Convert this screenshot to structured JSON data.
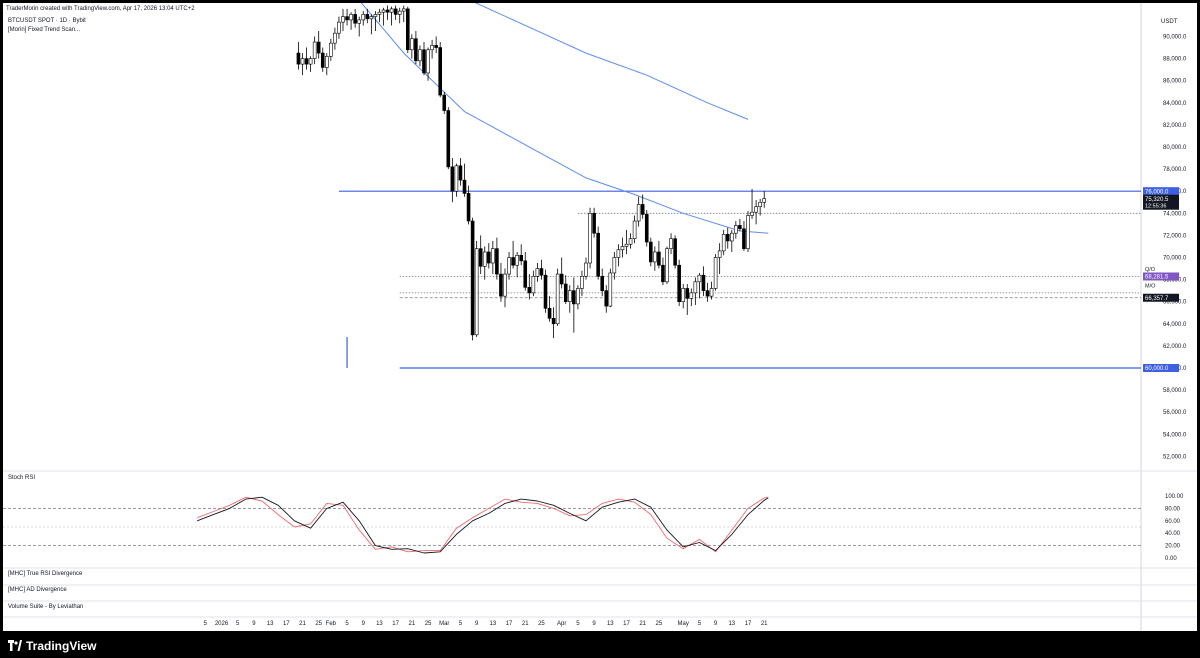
{
  "header": {
    "credit": "TraderMorin created with TradingView.com, Apr 17, 2026 13:04 UTC+2",
    "symbol_line": "BTCUSDT SPOT · 1D · Bybit",
    "indicator_line": "[Morin] Fixed Trend Scan...",
    "currency": "USDT"
  },
  "brand": {
    "name": "TradingView"
  },
  "colors": {
    "up": "#ffffff",
    "down": "#000000",
    "ma": "#5b8def",
    "level_line": "#3d5fe0",
    "level_tag": "#3d5fe0",
    "purple_tag": "#7e57c2",
    "black_tag": "#131722",
    "stoch_k": "#131722",
    "stoch_d": "#f06a6a"
  },
  "indicators": {
    "stoch_title": "Stoch RSI",
    "panes": [
      "[MHC] True RSI Divergence",
      "[MHC] AD Divergence",
      "Volume Suite - By Leviathan"
    ]
  },
  "chart_data": {
    "type": "candlestick",
    "price_axis": {
      "ylim": [
        50000,
        92000
      ],
      "ticks": [
        52000,
        54000,
        56000,
        58000,
        60000,
        62000,
        64000,
        66000,
        68000,
        70000,
        72000,
        74000,
        76000,
        78000,
        80000,
        82000,
        84000,
        86000,
        88000,
        90000
      ],
      "tick_labels": [
        "52,000.0",
        "54,000.0",
        "56,000.0",
        "58,000.0",
        "60,000.0",
        "62,000.0",
        "64,000.0",
        "66,000.0",
        "68,000.0",
        "70,000.0",
        "72,000.0",
        "74,000.0",
        "76,000.0",
        "78,000.0",
        "80,000.0",
        "82,000.0",
        "84,000.0",
        "86,000.0",
        "88,000.0",
        "90,000.0"
      ]
    },
    "time_axis": {
      "labels": [
        "5",
        "2026",
        "5",
        "9",
        "13",
        "17",
        "21",
        "25",
        "Feb",
        "5",
        "9",
        "13",
        "17",
        "21",
        "25",
        "Mar",
        "5",
        "9",
        "13",
        "17",
        "21",
        "25",
        "Apr",
        "5",
        "9",
        "13",
        "17",
        "21",
        "25",
        "May",
        "5",
        "9",
        "13",
        "17",
        "21"
      ],
      "label_index": [
        -34,
        -30,
        -26,
        -22,
        -18,
        -14,
        -10,
        -6,
        -3,
        1,
        5,
        9,
        13,
        17,
        21,
        25,
        29,
        33,
        37,
        41,
        45,
        49,
        54,
        58,
        62,
        66,
        70,
        74,
        78,
        84,
        88,
        92,
        96,
        100,
        104
      ]
    },
    "candles": [
      {
        "o": 88500,
        "h": 89500,
        "l": 87000,
        "c": 87500
      },
      {
        "o": 87500,
        "h": 88500,
        "l": 86500,
        "c": 88000
      },
      {
        "o": 88000,
        "h": 89000,
        "l": 87000,
        "c": 87500
      },
      {
        "o": 87500,
        "h": 88200,
        "l": 86800,
        "c": 88000
      },
      {
        "o": 88000,
        "h": 90000,
        "l": 87500,
        "c": 89500
      },
      {
        "o": 89500,
        "h": 90500,
        "l": 88000,
        "c": 88500
      },
      {
        "o": 88500,
        "h": 89000,
        "l": 86800,
        "c": 87200
      },
      {
        "o": 87200,
        "h": 88500,
        "l": 86500,
        "c": 88200
      },
      {
        "o": 88200,
        "h": 89800,
        "l": 87800,
        "c": 89400
      },
      {
        "o": 89400,
        "h": 90800,
        "l": 88800,
        "c": 90300
      },
      {
        "o": 90300,
        "h": 91800,
        "l": 89800,
        "c": 91300
      },
      {
        "o": 91300,
        "h": 92500,
        "l": 90500,
        "c": 91800
      },
      {
        "o": 91800,
        "h": 92500,
        "l": 91000,
        "c": 91500
      },
      {
        "o": 91500,
        "h": 92200,
        "l": 90600,
        "c": 92000
      },
      {
        "o": 92000,
        "h": 92500,
        "l": 90800,
        "c": 91200
      },
      {
        "o": 91200,
        "h": 91800,
        "l": 90000,
        "c": 91500
      },
      {
        "o": 91500,
        "h": 92300,
        "l": 91000,
        "c": 92000
      },
      {
        "o": 92000,
        "h": 92500,
        "l": 91200,
        "c": 91600
      },
      {
        "o": 91600,
        "h": 92000,
        "l": 90200,
        "c": 91800
      },
      {
        "o": 91800,
        "h": 92300,
        "l": 90500,
        "c": 92000
      },
      {
        "o": 92000,
        "h": 92500,
        "l": 91300,
        "c": 92200
      },
      {
        "o": 92200,
        "h": 92600,
        "l": 91000,
        "c": 92400
      },
      {
        "o": 92400,
        "h": 92800,
        "l": 91500,
        "c": 92200
      },
      {
        "o": 92200,
        "h": 92700,
        "l": 91000,
        "c": 92500
      },
      {
        "o": 92500,
        "h": 92800,
        "l": 91500,
        "c": 92000
      },
      {
        "o": 92000,
        "h": 92600,
        "l": 91200,
        "c": 92300
      },
      {
        "o": 92300,
        "h": 92800,
        "l": 91300,
        "c": 92500
      },
      {
        "o": 92500,
        "h": 92700,
        "l": 88500,
        "c": 88800
      },
      {
        "o": 88800,
        "h": 90200,
        "l": 88000,
        "c": 89800
      },
      {
        "o": 89800,
        "h": 90500,
        "l": 87500,
        "c": 87800
      },
      {
        "o": 87800,
        "h": 89200,
        "l": 87300,
        "c": 88800
      },
      {
        "o": 88800,
        "h": 89500,
        "l": 86500,
        "c": 86700
      },
      {
        "o": 86700,
        "h": 89000,
        "l": 86000,
        "c": 88800
      },
      {
        "o": 88800,
        "h": 89700,
        "l": 88000,
        "c": 89200
      },
      {
        "o": 89200,
        "h": 90000,
        "l": 88500,
        "c": 89000
      },
      {
        "o": 89000,
        "h": 89500,
        "l": 84500,
        "c": 84700
      },
      {
        "o": 84700,
        "h": 85000,
        "l": 83000,
        "c": 83300
      },
      {
        "o": 83300,
        "h": 83600,
        "l": 78000,
        "c": 78200
      },
      {
        "o": 78200,
        "h": 79000,
        "l": 75000,
        "c": 76000
      },
      {
        "o": 76000,
        "h": 78500,
        "l": 75500,
        "c": 78300
      },
      {
        "o": 78300,
        "h": 79000,
        "l": 76500,
        "c": 77000
      },
      {
        "o": 77000,
        "h": 78500,
        "l": 75500,
        "c": 75800
      },
      {
        "o": 75800,
        "h": 76500,
        "l": 73000,
        "c": 73300
      },
      {
        "o": 73300,
        "h": 73600,
        "l": 62500,
        "c": 63000
      },
      {
        "o": 63000,
        "h": 71500,
        "l": 62800,
        "c": 70800
      },
      {
        "o": 70800,
        "h": 72000,
        "l": 68500,
        "c": 69200
      },
      {
        "o": 69200,
        "h": 71000,
        "l": 68000,
        "c": 70500
      },
      {
        "o": 70500,
        "h": 71300,
        "l": 69000,
        "c": 69500
      },
      {
        "o": 69500,
        "h": 71500,
        "l": 68500,
        "c": 70800
      },
      {
        "o": 70800,
        "h": 71800,
        "l": 68000,
        "c": 68500
      },
      {
        "o": 68500,
        "h": 69500,
        "l": 66000,
        "c": 66500
      },
      {
        "o": 66500,
        "h": 69000,
        "l": 65500,
        "c": 68500
      },
      {
        "o": 68500,
        "h": 70500,
        "l": 68000,
        "c": 70000
      },
      {
        "o": 70000,
        "h": 71500,
        "l": 69000,
        "c": 69300
      },
      {
        "o": 69300,
        "h": 70500,
        "l": 68200,
        "c": 70200
      },
      {
        "o": 70200,
        "h": 71200,
        "l": 69300,
        "c": 69700
      },
      {
        "o": 69700,
        "h": 70500,
        "l": 67000,
        "c": 67300
      },
      {
        "o": 67300,
        "h": 68500,
        "l": 66200,
        "c": 66800
      },
      {
        "o": 66800,
        "h": 68800,
        "l": 66500,
        "c": 68300
      },
      {
        "o": 68300,
        "h": 69500,
        "l": 67800,
        "c": 69000
      },
      {
        "o": 69000,
        "h": 69800,
        "l": 68000,
        "c": 68400
      },
      {
        "o": 68400,
        "h": 68900,
        "l": 65000,
        "c": 65400
      },
      {
        "o": 65400,
        "h": 66500,
        "l": 64200,
        "c": 64500
      },
      {
        "o": 64500,
        "h": 65500,
        "l": 62700,
        "c": 64000
      },
      {
        "o": 64000,
        "h": 69000,
        "l": 63800,
        "c": 68500
      },
      {
        "o": 68500,
        "h": 70000,
        "l": 67200,
        "c": 67600
      },
      {
        "o": 67600,
        "h": 68400,
        "l": 65800,
        "c": 66000
      },
      {
        "o": 66000,
        "h": 67500,
        "l": 65000,
        "c": 67000
      },
      {
        "o": 67000,
        "h": 68200,
        "l": 63200,
        "c": 65800
      },
      {
        "o": 65800,
        "h": 67500,
        "l": 65300,
        "c": 67200
      },
      {
        "o": 67200,
        "h": 68800,
        "l": 66500,
        "c": 68300
      },
      {
        "o": 68300,
        "h": 70000,
        "l": 68000,
        "c": 69500
      },
      {
        "o": 69500,
        "h": 74500,
        "l": 69000,
        "c": 74000
      },
      {
        "o": 74000,
        "h": 74500,
        "l": 71800,
        "c": 72200
      },
      {
        "o": 72200,
        "h": 72800,
        "l": 68000,
        "c": 68300
      },
      {
        "o": 68300,
        "h": 69000,
        "l": 66500,
        "c": 67000
      },
      {
        "o": 67000,
        "h": 67500,
        "l": 65000,
        "c": 65600
      },
      {
        "o": 65600,
        "h": 69000,
        "l": 65500,
        "c": 68600
      },
      {
        "o": 68600,
        "h": 70500,
        "l": 68000,
        "c": 70000
      },
      {
        "o": 70000,
        "h": 71200,
        "l": 69200,
        "c": 70700
      },
      {
        "o": 70700,
        "h": 71800,
        "l": 70000,
        "c": 71000
      },
      {
        "o": 71000,
        "h": 72500,
        "l": 70300,
        "c": 71200
      },
      {
        "o": 71200,
        "h": 72200,
        "l": 70800,
        "c": 71700
      },
      {
        "o": 71700,
        "h": 73800,
        "l": 71300,
        "c": 73300
      },
      {
        "o": 73300,
        "h": 75500,
        "l": 72800,
        "c": 74800
      },
      {
        "o": 74800,
        "h": 75700,
        "l": 73500,
        "c": 73900
      },
      {
        "o": 73900,
        "h": 74300,
        "l": 71000,
        "c": 71400
      },
      {
        "o": 71400,
        "h": 71800,
        "l": 69200,
        "c": 69600
      },
      {
        "o": 69600,
        "h": 71000,
        "l": 68800,
        "c": 70500
      },
      {
        "o": 70500,
        "h": 71500,
        "l": 69000,
        "c": 69300
      },
      {
        "o": 69300,
        "h": 70000,
        "l": 67500,
        "c": 67800
      },
      {
        "o": 67800,
        "h": 71000,
        "l": 67600,
        "c": 70800
      },
      {
        "o": 70800,
        "h": 72200,
        "l": 70300,
        "c": 71700
      },
      {
        "o": 71700,
        "h": 72000,
        "l": 69000,
        "c": 69300
      },
      {
        "o": 69300,
        "h": 69800,
        "l": 65600,
        "c": 66000
      },
      {
        "o": 66000,
        "h": 67600,
        "l": 65400,
        "c": 67200
      },
      {
        "o": 67200,
        "h": 67600,
        "l": 64800,
        "c": 66300
      },
      {
        "o": 66300,
        "h": 67200,
        "l": 65600,
        "c": 66800
      },
      {
        "o": 66800,
        "h": 68200,
        "l": 65700,
        "c": 67800
      },
      {
        "o": 67800,
        "h": 68600,
        "l": 66300,
        "c": 68400
      },
      {
        "o": 68400,
        "h": 69200,
        "l": 66500,
        "c": 67000
      },
      {
        "o": 67000,
        "h": 67700,
        "l": 66000,
        "c": 66500
      },
      {
        "o": 66500,
        "h": 67800,
        "l": 66200,
        "c": 67200
      },
      {
        "o": 67200,
        "h": 70300,
        "l": 67000,
        "c": 70000
      },
      {
        "o": 70000,
        "h": 71300,
        "l": 68500,
        "c": 70600
      },
      {
        "o": 70600,
        "h": 72500,
        "l": 70200,
        "c": 72100
      },
      {
        "o": 72100,
        "h": 72700,
        "l": 70800,
        "c": 71500
      },
      {
        "o": 71500,
        "h": 72500,
        "l": 70500,
        "c": 72200
      },
      {
        "o": 72200,
        "h": 73300,
        "l": 71700,
        "c": 72900
      },
      {
        "o": 72900,
        "h": 73500,
        "l": 72400,
        "c": 72600
      },
      {
        "o": 72600,
        "h": 73300,
        "l": 70600,
        "c": 70800
      },
      {
        "o": 70800,
        "h": 74200,
        "l": 70500,
        "c": 73800
      },
      {
        "o": 73800,
        "h": 76200,
        "l": 73500,
        "c": 74100
      },
      {
        "o": 74100,
        "h": 75200,
        "l": 73000,
        "c": 74600
      },
      {
        "o": 74600,
        "h": 75300,
        "l": 73800,
        "c": 75000
      },
      {
        "o": 75000,
        "h": 76000,
        "l": 74500,
        "c": 75320.5
      }
    ],
    "moving_averages": [
      {
        "x": [
          -7,
          0,
          15,
          30,
          45,
          60,
          75,
          90,
          100
        ],
        "y": [
          105000,
          101000,
          96000,
          93500,
          91000,
          88500,
          86500,
          84000,
          82500
        ]
      },
      {
        "x": [
          -17,
          -10,
          0,
          15,
          30,
          45,
          60,
          72,
          84,
          98,
          105
        ],
        "y": [
          109000,
          103000,
          95000,
          88500,
          83200,
          80200,
          77200,
          75700,
          74000,
          72400,
          72200
        ]
      }
    ],
    "levels": [
      {
        "price": 76000,
        "from": -1,
        "label": "76,000.0",
        "style": "solid"
      },
      {
        "price": 60000,
        "from": 14,
        "label": "60,000.0",
        "style": "solid"
      },
      {
        "price": 74000,
        "from": 58,
        "label": "",
        "style": "dotted"
      },
      {
        "price": 68281.5,
        "from": 14,
        "label": "68,281.5",
        "style": "dotted"
      },
      {
        "price": 66800,
        "from": 14,
        "label": "",
        "style": "dotted"
      },
      {
        "price": 66357.7,
        "from": 14,
        "label": "66,357.7",
        "style": "dashed"
      }
    ],
    "level_tags": {
      "qo": "Q/O",
      "mo": "M/O"
    },
    "last_price": {
      "value": 75320.5,
      "label": "75,320.5",
      "countdown": "12:55:36"
    },
    "stoch_rsi": {
      "ylim": [
        0,
        100
      ],
      "ticks": [
        0,
        20,
        40,
        60,
        80,
        100
      ],
      "tick_labels": [
        "0.00",
        "20.00",
        "40.00",
        "60.00",
        "80.00",
        "100.00"
      ],
      "k": {
        "x": [
          -36,
          -32,
          -28,
          -24,
          -20,
          -16,
          -12,
          -8,
          -4,
          0,
          4,
          8,
          12,
          16,
          20,
          24,
          28,
          32,
          36,
          40,
          44,
          48,
          52,
          56,
          60,
          64,
          68,
          72,
          76,
          80,
          84,
          88,
          92,
          96,
          100,
          104,
          105
        ],
        "y": [
          60,
          70,
          80,
          95,
          98,
          85,
          60,
          48,
          80,
          90,
          60,
          20,
          14,
          15,
          8,
          10,
          38,
          60,
          72,
          88,
          95,
          92,
          85,
          72,
          60,
          82,
          90,
          95,
          82,
          45,
          18,
          25,
          12,
          38,
          70,
          93,
          97
        ]
      },
      "d": {
        "x": [
          -36,
          -32,
          -28,
          -24,
          -20,
          -16,
          -12,
          -8,
          -4,
          0,
          4,
          8,
          12,
          16,
          20,
          24,
          28,
          32,
          36,
          40,
          44,
          48,
          52,
          56,
          60,
          64,
          68,
          72,
          76,
          80,
          84,
          88,
          92,
          96,
          100,
          104,
          105
        ],
        "y": [
          65,
          75,
          85,
          98,
          92,
          70,
          50,
          55,
          88,
          85,
          45,
          14,
          18,
          10,
          12,
          12,
          48,
          65,
          80,
          95,
          90,
          88,
          80,
          68,
          70,
          88,
          95,
          90,
          70,
          32,
          15,
          30,
          10,
          45,
          80,
          97,
          98
        ]
      }
    }
  }
}
